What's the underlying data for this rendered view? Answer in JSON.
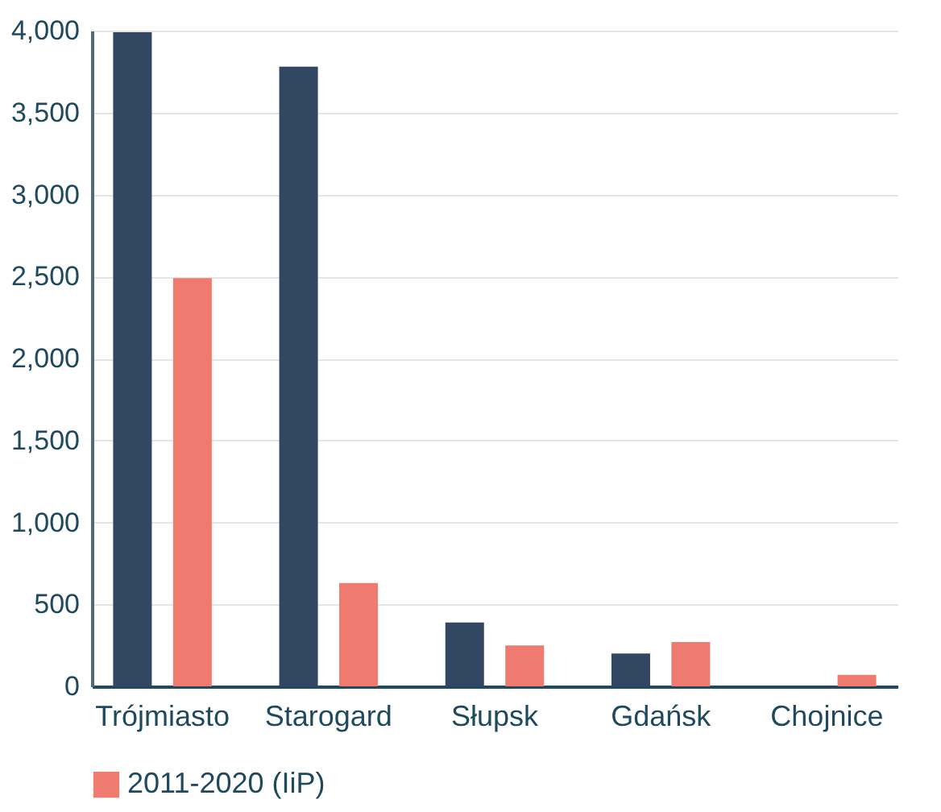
{
  "chart_data": {
    "type": "bar",
    "categories": [
      "Trójmiasto",
      "Starogard",
      "Słupsk",
      "Gdańsk",
      "Chojnice"
    ],
    "series": [
      {
        "color": "#324862",
        "values": [
          3990,
          3780,
          390,
          200,
          null
        ]
      },
      {
        "name": "2011-2020 (IiP)",
        "color": "#ee7a70",
        "values": [
          2490,
          630,
          250,
          270,
          70
        ]
      }
    ],
    "ylim": [
      0,
      4000
    ],
    "yticks": [
      0,
      500,
      {
        "value": 1000,
        "label": "1,000"
      },
      {
        "value": 1500,
        "label": "1,500"
      },
      {
        "value": 2000,
        "label": "2,000"
      },
      {
        "value": 2500,
        "label": "2,500"
      },
      {
        "value": 3000,
        "label": "3,000"
      },
      {
        "value": 3500,
        "label": "3,500"
      },
      {
        "value": 4000,
        "label": "4,000"
      }
    ],
    "grid": "y",
    "legend": "bottom left"
  }
}
